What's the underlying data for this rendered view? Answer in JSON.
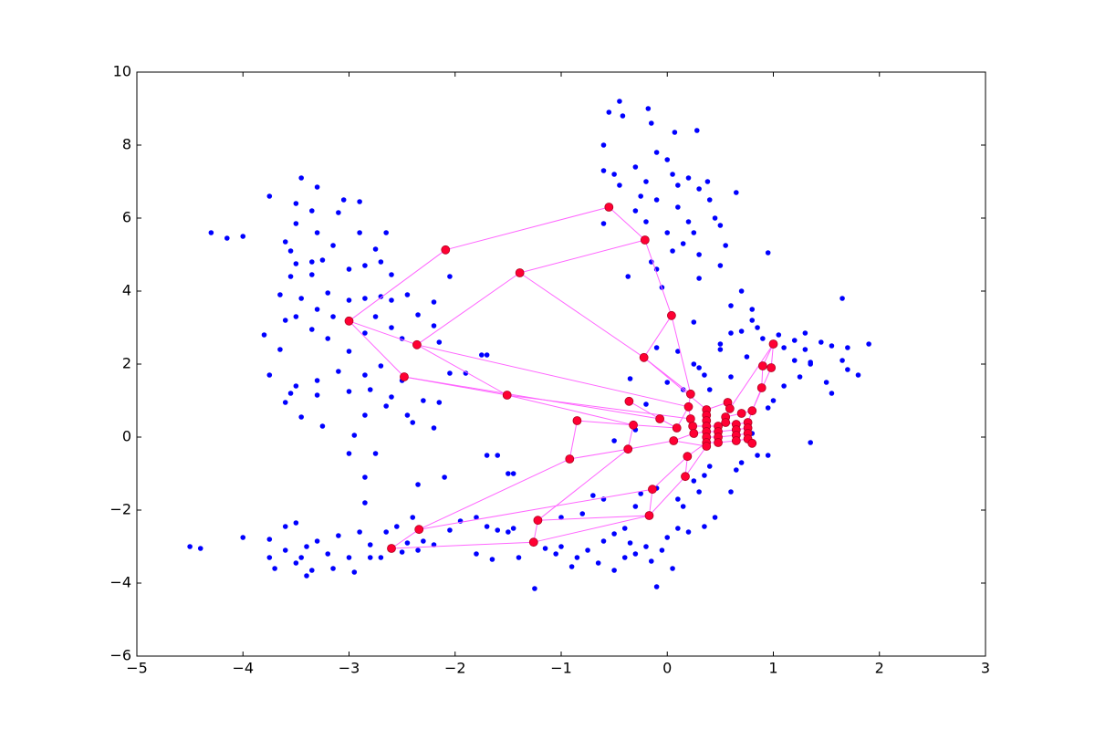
{
  "chart_data": {
    "type": "scatter",
    "xlim": [
      -5,
      3
    ],
    "ylim": [
      -6,
      10
    ],
    "xticks": [
      {
        "value": -5,
        "label": "−5"
      },
      {
        "value": -4,
        "label": "−4"
      },
      {
        "value": -3,
        "label": "−3"
      },
      {
        "value": -2,
        "label": "−2"
      },
      {
        "value": -1,
        "label": "−1"
      },
      0,
      1,
      2,
      3
    ],
    "yticks": [
      {
        "value": -6,
        "label": "−6"
      },
      {
        "value": -4,
        "label": "−4"
      },
      {
        "value": -2,
        "label": "−2"
      },
      0,
      2,
      4,
      6,
      8,
      10
    ],
    "series": [
      {
        "color": "#0000ff",
        "x": [
          -0.45,
          -0.55,
          -0.42,
          -0.18,
          -0.15,
          0.07,
          0.28,
          -0.6,
          -0.3,
          -0.1,
          0.0,
          -0.2,
          -0.5,
          -0.6,
          -0.45,
          0.05,
          0.2,
          0.3,
          0.4,
          0.65,
          -0.1,
          0.1,
          -0.3,
          0.45,
          0.5,
          -0.2,
          -0.6,
          0.0,
          0.15,
          0.3,
          0.05,
          -0.15,
          -0.37,
          -0.1,
          0.3,
          0.5,
          0.25,
          0.55,
          -0.05,
          0.2,
          0.38,
          -0.25,
          0.1,
          -3.05,
          -3.3,
          -3.75,
          -3.45,
          -4.3,
          -4.15,
          -4.0,
          -3.5,
          -3.35,
          -3.1,
          -2.9,
          -3.5,
          -3.6,
          -3.3,
          -3.15,
          -2.9,
          -2.65,
          -2.75,
          -3.55,
          -3.35,
          -3.25,
          -3.5,
          -3.0,
          -2.85,
          -2.7,
          -3.55,
          -3.35,
          -2.6,
          -3.65,
          -3.45,
          -3.2,
          -3.0,
          -2.85,
          -3.3,
          -3.5,
          -3.6,
          -3.15,
          -2.7,
          -2.6,
          -2.75,
          -2.6,
          -2.45,
          -3.8,
          -3.65,
          -3.35,
          -3.2,
          -3.0,
          -2.85,
          -2.5,
          -3.75,
          -3.5,
          -3.3,
          -3.1,
          -2.85,
          -2.7,
          -2.5,
          -3.55,
          -3.3,
          -3.0,
          -2.8,
          -2.6,
          -2.3,
          -3.6,
          -3.45,
          -3.25,
          -2.85,
          -2.65,
          -2.45,
          -2.4,
          -2.15,
          -2.2,
          -2.05,
          -2.15,
          -1.9,
          -1.75,
          -3.0,
          -2.75,
          -2.95,
          -2.2,
          -2.85,
          -2.35,
          -2.2,
          -4.5,
          -4.4,
          -4.0,
          -3.75,
          -3.6,
          -3.5,
          -3.75,
          -3.7,
          -3.6,
          -3.5,
          -3.35,
          -3.4,
          -3.3,
          -3.2,
          -3.1,
          -3.15,
          -3.0,
          -2.95,
          -2.8,
          -2.9,
          -2.8,
          -2.7,
          -2.65,
          -2.55,
          -2.5,
          -2.45,
          -2.35,
          -2.3,
          -2.2,
          -2.05,
          -2.35,
          -2.85,
          -2.4,
          -3.4,
          -3.45,
          -1.95,
          -1.8,
          -1.6,
          -1.5,
          -1.7,
          -1.8,
          -1.65,
          -1.4,
          -1.25,
          -1.15,
          -1.05,
          -1.0,
          -0.9,
          -0.85,
          -0.75,
          -0.65,
          -0.6,
          -0.5,
          -0.4,
          -0.35,
          -0.3,
          -0.2,
          -0.15,
          -0.1,
          -0.05,
          0.0,
          0.1,
          0.2,
          0.35,
          0.45,
          -0.4,
          -0.3,
          -0.25,
          -0.1,
          0.1,
          0.15,
          0.25,
          0.3,
          0.4,
          0.35,
          0.6,
          0.65,
          0.7,
          0.85,
          -0.7,
          -1.0,
          -1.45,
          -1.5,
          -1.7,
          -2.1,
          -0.5,
          0.05,
          -0.8,
          -0.6,
          0.6,
          0.7,
          0.8,
          0.85,
          0.7,
          0.6,
          0.5,
          0.9,
          1.05,
          1.1,
          1.2,
          1.3,
          1.45,
          1.55,
          1.7,
          1.9,
          1.65,
          1.35,
          1.5,
          1.55,
          1.65,
          1.8,
          1.25,
          1.1,
          1.0,
          1.2,
          1.3,
          0.95,
          0.8,
          0.5,
          0.35,
          0.3,
          0.15,
          0.4,
          0.6,
          0.95,
          0.8,
          0.95,
          1.35,
          0.1,
          0.25,
          0.75,
          1.35,
          1.7,
          -0.35,
          -0.1,
          -1.7,
          -2.05,
          -1.6,
          -1.45,
          0.25,
          0.0,
          -0.2,
          -0.3,
          -0.5
        ],
        "y": [
          9.2,
          8.9,
          8.8,
          9.0,
          8.6,
          8.35,
          8.4,
          8.0,
          7.4,
          7.8,
          7.6,
          7.0,
          7.2,
          7.3,
          6.9,
          7.2,
          7.1,
          6.8,
          6.5,
          6.7,
          6.5,
          6.3,
          6.2,
          6.0,
          5.8,
          5.9,
          5.85,
          5.6,
          5.3,
          5.0,
          5.1,
          4.8,
          4.4,
          4.6,
          4.35,
          4.7,
          5.6,
          5.25,
          4.1,
          5.9,
          7.0,
          6.6,
          6.9,
          6.5,
          6.85,
          6.6,
          7.1,
          5.6,
          5.45,
          5.5,
          6.4,
          6.2,
          6.15,
          6.45,
          5.85,
          5.35,
          5.6,
          5.25,
          5.6,
          5.6,
          5.15,
          5.1,
          4.8,
          4.85,
          4.75,
          4.6,
          4.7,
          4.8,
          4.4,
          4.45,
          4.45,
          3.9,
          3.8,
          3.95,
          3.75,
          3.8,
          3.5,
          3.3,
          3.2,
          3.3,
          3.85,
          3.75,
          3.3,
          3.0,
          3.9,
          2.8,
          2.4,
          2.95,
          2.7,
          2.35,
          2.85,
          2.7,
          1.7,
          1.4,
          1.55,
          1.8,
          1.7,
          1.95,
          1.55,
          1.2,
          1.15,
          1.25,
          1.3,
          1.1,
          1.0,
          0.95,
          0.55,
          0.3,
          0.6,
          0.85,
          0.6,
          0.4,
          0.95,
          3.7,
          4.4,
          2.6,
          1.75,
          2.25,
          -0.45,
          -0.45,
          0.05,
          0.25,
          -1.1,
          3.35,
          3.05,
          -3.0,
          -3.05,
          -2.75,
          -2.8,
          -2.45,
          -2.35,
          -3.3,
          -3.6,
          -3.1,
          -3.45,
          -3.65,
          -3.0,
          -2.85,
          -3.2,
          -2.7,
          -3.6,
          -3.3,
          -3.7,
          -2.95,
          -2.6,
          -3.3,
          -3.3,
          -2.6,
          -2.45,
          -3.15,
          -2.9,
          -3.1,
          -2.85,
          -2.95,
          -2.55,
          -1.3,
          -1.8,
          -2.2,
          -3.8,
          -3.3,
          -2.3,
          -2.2,
          -2.55,
          -2.6,
          -2.45,
          -3.2,
          -3.35,
          -3.3,
          -4.15,
          -3.05,
          -3.2,
          -3.0,
          -3.55,
          -3.3,
          -3.1,
          -3.45,
          -2.85,
          -3.65,
          -3.3,
          -2.9,
          -3.2,
          -3.0,
          -3.4,
          -4.1,
          -3.1,
          -2.75,
          -2.5,
          -2.6,
          -2.45,
          -2.2,
          -2.5,
          -1.9,
          -1.55,
          -1.4,
          -1.7,
          -1.9,
          -1.2,
          -1.5,
          -0.8,
          -1.05,
          -1.5,
          -0.9,
          -0.7,
          -0.5,
          -1.6,
          -2.2,
          -2.5,
          -1.0,
          -0.5,
          -1.1,
          -2.65,
          -3.6,
          -2.1,
          -1.7,
          3.6,
          4.0,
          3.5,
          3.0,
          2.9,
          2.85,
          2.55,
          2.7,
          2.8,
          2.45,
          2.65,
          2.85,
          2.6,
          2.5,
          2.45,
          2.55,
          3.8,
          2.05,
          1.5,
          1.2,
          2.1,
          1.7,
          1.65,
          1.4,
          1.0,
          2.1,
          2.4,
          5.05,
          3.2,
          2.4,
          1.7,
          1.9,
          1.3,
          1.3,
          1.65,
          0.8,
          0.1,
          -0.5,
          -0.15,
          2.35,
          3.15,
          2.2,
          2.0,
          1.85,
          1.6,
          2.45,
          2.25,
          1.75,
          -0.5,
          -1.0,
          2.0,
          1.5,
          0.9,
          0.2,
          -0.1
        ]
      }
    ],
    "graph": {
      "edge_color": "#ff66ff",
      "node_color": "#ff0033",
      "nodes": {
        "x": [
          -0.55,
          -0.21,
          -2.09,
          -1.39,
          0.04,
          -3.0,
          -2.36,
          -0.22,
          1.0,
          -2.48,
          0.9,
          0.98,
          0.89,
          -1.51,
          -0.36,
          0.22,
          -0.85,
          -0.32,
          -0.07,
          0.09,
          0.06,
          -0.37,
          -0.92,
          0.19,
          0.17,
          -0.14,
          -0.17,
          -1.22,
          -1.26,
          -2.34,
          -2.6,
          0.2,
          0.22,
          0.24,
          0.25,
          0.37,
          0.37,
          0.37,
          0.37,
          0.37,
          0.37,
          0.37,
          0.37,
          0.48,
          0.48,
          0.48,
          0.48,
          0.55,
          0.55,
          0.57,
          0.59,
          0.65,
          0.65,
          0.65,
          0.65,
          0.7,
          0.8,
          0.76,
          0.76,
          0.76,
          0.76,
          0.8
        ],
        "y": [
          6.3,
          5.4,
          5.13,
          4.5,
          3.33,
          3.18,
          2.53,
          2.18,
          2.55,
          1.65,
          1.95,
          1.9,
          1.35,
          1.15,
          0.98,
          1.18,
          0.45,
          0.33,
          0.5,
          0.25,
          -0.1,
          -0.33,
          -0.6,
          -0.53,
          -1.08,
          -1.43,
          -2.15,
          -2.28,
          -2.88,
          -2.53,
          -3.05,
          0.83,
          0.5,
          0.3,
          0.1,
          0.75,
          0.6,
          0.45,
          0.3,
          0.15,
          0.0,
          -0.15,
          -0.25,
          0.3,
          0.15,
          0.0,
          -0.15,
          0.55,
          0.4,
          0.95,
          0.78,
          0.35,
          0.2,
          0.05,
          -0.1,
          0.65,
          0.72,
          0.4,
          0.25,
          0.1,
          -0.05,
          -0.17
        ]
      },
      "edges": [
        [
          0,
          2
        ],
        [
          0,
          1
        ],
        [
          1,
          3
        ],
        [
          2,
          5
        ],
        [
          3,
          6
        ],
        [
          3,
          7
        ],
        [
          1,
          4
        ],
        [
          4,
          7
        ],
        [
          4,
          15
        ],
        [
          5,
          6
        ],
        [
          5,
          9
        ],
        [
          6,
          31
        ],
        [
          6,
          13
        ],
        [
          9,
          13
        ],
        [
          9,
          18
        ],
        [
          13,
          17
        ],
        [
          13,
          32
        ],
        [
          7,
          35
        ],
        [
          7,
          15
        ],
        [
          14,
          18
        ],
        [
          16,
          17
        ],
        [
          16,
          22
        ],
        [
          17,
          19
        ],
        [
          18,
          19
        ],
        [
          19,
          31
        ],
        [
          17,
          21
        ],
        [
          21,
          20
        ],
        [
          20,
          42
        ],
        [
          21,
          22
        ],
        [
          22,
          29
        ],
        [
          21,
          27
        ],
        [
          27,
          28
        ],
        [
          27,
          26
        ],
        [
          28,
          30
        ],
        [
          28,
          26
        ],
        [
          29,
          30
        ],
        [
          29,
          25
        ],
        [
          26,
          25
        ],
        [
          25,
          23
        ],
        [
          24,
          23
        ],
        [
          24,
          26
        ],
        [
          23,
          41
        ],
        [
          20,
          34
        ],
        [
          24,
          42
        ],
        [
          8,
          11
        ],
        [
          8,
          10
        ],
        [
          10,
          11
        ],
        [
          10,
          12
        ],
        [
          12,
          56
        ],
        [
          11,
          56
        ],
        [
          15,
          31
        ],
        [
          8,
          50
        ],
        [
          31,
          32
        ],
        [
          32,
          33
        ],
        [
          33,
          34
        ],
        [
          35,
          36
        ],
        [
          36,
          37
        ],
        [
          37,
          38
        ],
        [
          38,
          39
        ],
        [
          39,
          40
        ],
        [
          40,
          41
        ],
        [
          41,
          42
        ],
        [
          43,
          44
        ],
        [
          44,
          45
        ],
        [
          45,
          46
        ],
        [
          47,
          48
        ],
        [
          49,
          50
        ],
        [
          51,
          52
        ],
        [
          52,
          53
        ],
        [
          53,
          54
        ],
        [
          57,
          58
        ],
        [
          58,
          59
        ],
        [
          59,
          60
        ],
        [
          60,
          61
        ],
        [
          33,
          38
        ],
        [
          34,
          39
        ],
        [
          38,
          43
        ],
        [
          39,
          44
        ],
        [
          40,
          45
        ],
        [
          41,
          46
        ],
        [
          48,
          51
        ],
        [
          44,
          52
        ],
        [
          45,
          53
        ],
        [
          46,
          54
        ],
        [
          51,
          57
        ],
        [
          52,
          58
        ],
        [
          53,
          59
        ],
        [
          54,
          60
        ],
        [
          49,
          35
        ],
        [
          50,
          47
        ],
        [
          55,
          56
        ],
        [
          55,
          47
        ],
        [
          56,
          57
        ]
      ]
    }
  }
}
